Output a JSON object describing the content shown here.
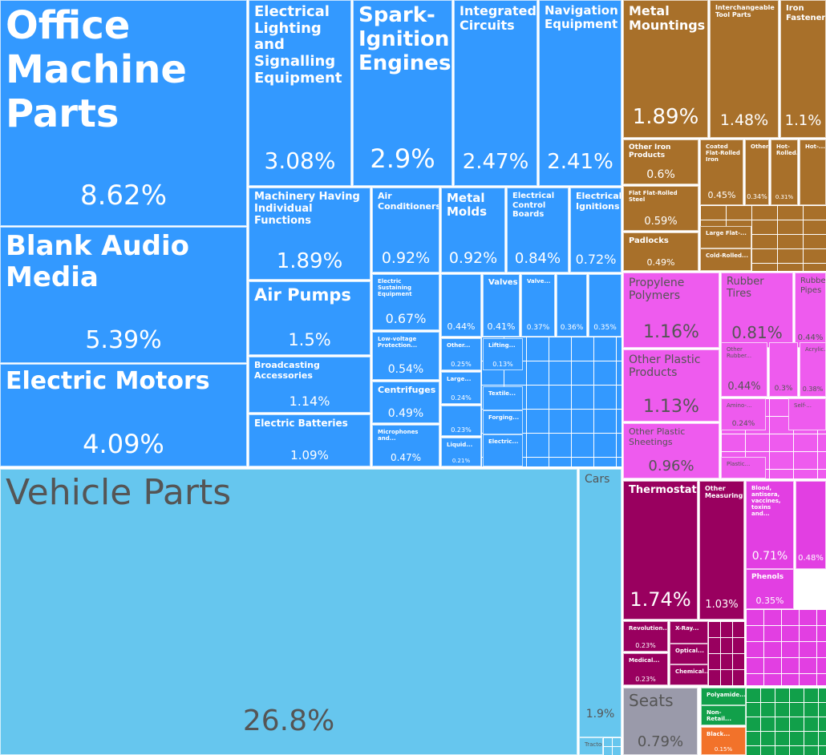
{
  "chart_data": {
    "type": "treemap",
    "items": [
      {
        "name": "Office Machine Parts",
        "value": 8.62,
        "value_label": "8.62%",
        "color": "#3399ff"
      },
      {
        "name": "Blank Audio Media",
        "value": 5.39,
        "value_label": "5.39%",
        "color": "#3399ff"
      },
      {
        "name": "Electric Motors",
        "value": 4.09,
        "value_label": "4.09%",
        "color": "#3399ff"
      },
      {
        "name": "Electrical Lighting and Signalling Equipment",
        "value": 3.08,
        "value_label": "3.08%",
        "color": "#3399ff"
      },
      {
        "name": "Spark-Ignition Engines",
        "value": 2.9,
        "value_label": "2.9%",
        "color": "#3399ff"
      },
      {
        "name": "Integrated Circuits",
        "value": 2.47,
        "value_label": "2.47%",
        "color": "#3399ff"
      },
      {
        "name": "Navigation Equipment",
        "value": 2.41,
        "value_label": "2.41%",
        "color": "#3399ff"
      },
      {
        "name": "Machinery Having Individual Functions",
        "value": 1.89,
        "value_label": "1.89%",
        "color": "#3399ff"
      },
      {
        "name": "Air Conditioners",
        "value": 0.92,
        "value_label": "0.92%",
        "color": "#3399ff"
      },
      {
        "name": "Metal Molds",
        "value": 0.92,
        "value_label": "0.92%",
        "color": "#3399ff"
      },
      {
        "name": "Electrical Control Boards",
        "value": 0.84,
        "value_label": "0.84%",
        "color": "#3399ff"
      },
      {
        "name": "Electrical Ignitions",
        "value": 0.72,
        "value_label": "0.72%",
        "color": "#3399ff"
      },
      {
        "name": "Air Pumps",
        "value": 1.5,
        "value_label": "1.5%",
        "color": "#3399ff"
      },
      {
        "name": "Broadcasting Accessories",
        "value": 1.14,
        "value_label": "1.14%",
        "color": "#3399ff"
      },
      {
        "name": "Electric Batteries",
        "value": 1.09,
        "value_label": "1.09%",
        "color": "#3399ff"
      },
      {
        "name": "Electric Sustaining Equipment",
        "value": 0.67,
        "value_label": "0.67%",
        "color": "#3399ff"
      },
      {
        "name": "Low-voltage Protection...",
        "value": 0.54,
        "value_label": "0.54%",
        "color": "#3399ff"
      },
      {
        "name": "Centrifuges",
        "value": 0.49,
        "value_label": "0.49%",
        "color": "#3399ff"
      },
      {
        "name": "Microphones and...",
        "value": 0.47,
        "value_label": "0.47%",
        "color": "#3399ff"
      },
      {
        "name": null,
        "value": 0.44,
        "value_label": "0.44%",
        "color": "#3399ff"
      },
      {
        "name": "Valves",
        "value": 0.41,
        "value_label": "0.41%",
        "color": "#3399ff"
      },
      {
        "name": "Valve...",
        "value": 0.37,
        "value_label": "0.37%",
        "color": "#3399ff"
      },
      {
        "name": null,
        "value": 0.36,
        "value_label": "0.36%",
        "color": "#3399ff"
      },
      {
        "name": null,
        "value": 0.35,
        "value_label": "0.35%",
        "color": "#3399ff"
      },
      {
        "name": "Other...",
        "value": 0.25,
        "value_label": "0.25%",
        "color": "#3399ff"
      },
      {
        "name": "Lifting...",
        "value": 0.13,
        "value_label": "0.13%",
        "color": "#3399ff"
      },
      {
        "name": "Large...",
        "value": 0.24,
        "value_label": "0.24%",
        "color": "#3399ff"
      },
      {
        "name": null,
        "value": 0.23,
        "value_label": "0.23%",
        "color": "#3399ff"
      },
      {
        "name": "Liquid...",
        "value": 0.21,
        "value_label": "0.21%",
        "color": "#3399ff"
      },
      {
        "name": "Textile...",
        "value": 0.2,
        "value_label": null,
        "color": "#3399ff"
      },
      {
        "name": "Forging...",
        "value": 0.2,
        "value_label": null,
        "color": "#3399ff"
      },
      {
        "name": "Electric...",
        "value": 0.2,
        "value_label": null,
        "color": "#3399ff"
      },
      {
        "name": "Vehicle Parts",
        "value": 26.8,
        "value_label": "26.8%",
        "color": "#66c6ee"
      },
      {
        "name": "Cars",
        "value": 1.9,
        "value_label": "1.9%",
        "color": "#66c6ee"
      },
      {
        "name": "Tractors",
        "value": 0.1,
        "value_label": null,
        "color": "#66c6ee"
      },
      {
        "name": "Metal Mountings",
        "value": 1.89,
        "value_label": "1.89%",
        "color": "#a8702a"
      },
      {
        "name": "Interchangeable Tool Parts",
        "value": 1.48,
        "value_label": "1.48%",
        "color": "#a8702a"
      },
      {
        "name": "Iron Fasteners",
        "value": 1.1,
        "value_label": "1.1%",
        "color": "#a8702a"
      },
      {
        "name": "Other Iron Products",
        "value": 0.6,
        "value_label": "0.6%",
        "color": "#a8702a"
      },
      {
        "name": "Flat Flat-Rolled Steel",
        "value": 0.59,
        "value_label": "0.59%",
        "color": "#a8702a"
      },
      {
        "name": "Padlocks",
        "value": 0.49,
        "value_label": "0.49%",
        "color": "#a8702a"
      },
      {
        "name": "Coated Flat-Rolled Iron",
        "value": 0.45,
        "value_label": "0.45%",
        "color": "#a8702a"
      },
      {
        "name": "Other...",
        "value": 0.34,
        "value_label": "0.34%",
        "color": "#a8702a"
      },
      {
        "name": "Hot-Rolled...",
        "value": 0.31,
        "value_label": "0.31%",
        "color": "#a8702a"
      },
      {
        "name": "Hot-...",
        "value": 0.3,
        "value_label": null,
        "color": "#a8702a"
      },
      {
        "name": "Large Flat-...",
        "value": 0.2,
        "value_label": null,
        "color": "#a8702a"
      },
      {
        "name": "Cold-Rolled...",
        "value": 0.2,
        "value_label": null,
        "color": "#a8702a"
      },
      {
        "name": "Propylene Polymers",
        "value": 1.16,
        "value_label": "1.16%",
        "color": "#ee5bee"
      },
      {
        "name": "Rubber Tires",
        "value": 0.81,
        "value_label": "0.81%",
        "color": "#ee5bee"
      },
      {
        "name": "Rubber Pipes",
        "value": 0.44,
        "value_label": "0.44%",
        "color": "#ee5bee"
      },
      {
        "name": "Other Plastic Products",
        "value": 1.13,
        "value_label": "1.13%",
        "color": "#ee5bee"
      },
      {
        "name": "Other Plastic Sheetings",
        "value": 0.96,
        "value_label": "0.96%",
        "color": "#ee5bee"
      },
      {
        "name": "Other Rubber...",
        "value": 0.44,
        "value_label": "0.44%",
        "color": "#ee5bee"
      },
      {
        "name": null,
        "value": 0.3,
        "value_label": "0.3%",
        "color": "#ee5bee"
      },
      {
        "name": "Acrylic...",
        "value": 0.38,
        "value_label": "0.38%",
        "color": "#ee5bee"
      },
      {
        "name": "Amino-...",
        "value": 0.24,
        "value_label": "0.24%",
        "color": "#ee5bee"
      },
      {
        "name": "Self-...",
        "value": 0.2,
        "value_label": null,
        "color": "#ee5bee"
      },
      {
        "name": "Plastic...",
        "value": 0.15,
        "value_label": null,
        "color": "#ee5bee"
      },
      {
        "name": "Thermostats",
        "value": 1.74,
        "value_label": "1.74%",
        "color": "#99005f"
      },
      {
        "name": "Other Measuring...",
        "value": 1.03,
        "value_label": "1.03%",
        "color": "#99005f"
      },
      {
        "name": "Revolution...",
        "value": 0.23,
        "value_label": "0.23%",
        "color": "#99005f"
      },
      {
        "name": "X-Ray...",
        "value": 0.2,
        "value_label": null,
        "color": "#99005f"
      },
      {
        "name": "Medical...",
        "value": 0.23,
        "value_label": "0.23%",
        "color": "#99005f"
      },
      {
        "name": "Optical...",
        "value": 0.2,
        "value_label": null,
        "color": "#99005f"
      },
      {
        "name": "Chemical...",
        "value": 0.2,
        "value_label": null,
        "color": "#99005f"
      },
      {
        "name": "Blood, antisera, vaccines, toxins and...",
        "value": 0.71,
        "value_label": "0.71%",
        "color": "#e23fe2"
      },
      {
        "name": null,
        "value": 0.48,
        "value_label": "0.48%",
        "color": "#e23fe2"
      },
      {
        "name": "Phenols",
        "value": 0.35,
        "value_label": "0.35%",
        "color": "#e23fe2"
      },
      {
        "name": "Seats",
        "value": 0.79,
        "value_label": "0.79%",
        "color": "#9a9aaa"
      },
      {
        "name": "Polyamide...",
        "value": 0.2,
        "value_label": null,
        "color": "#11a04a"
      },
      {
        "name": "Non-Retail...",
        "value": 0.2,
        "value_label": null,
        "color": "#11a04a"
      },
      {
        "name": "Black...",
        "value": 0.15,
        "value_label": "0.15%",
        "color": "#f2722a"
      }
    ]
  }
}
